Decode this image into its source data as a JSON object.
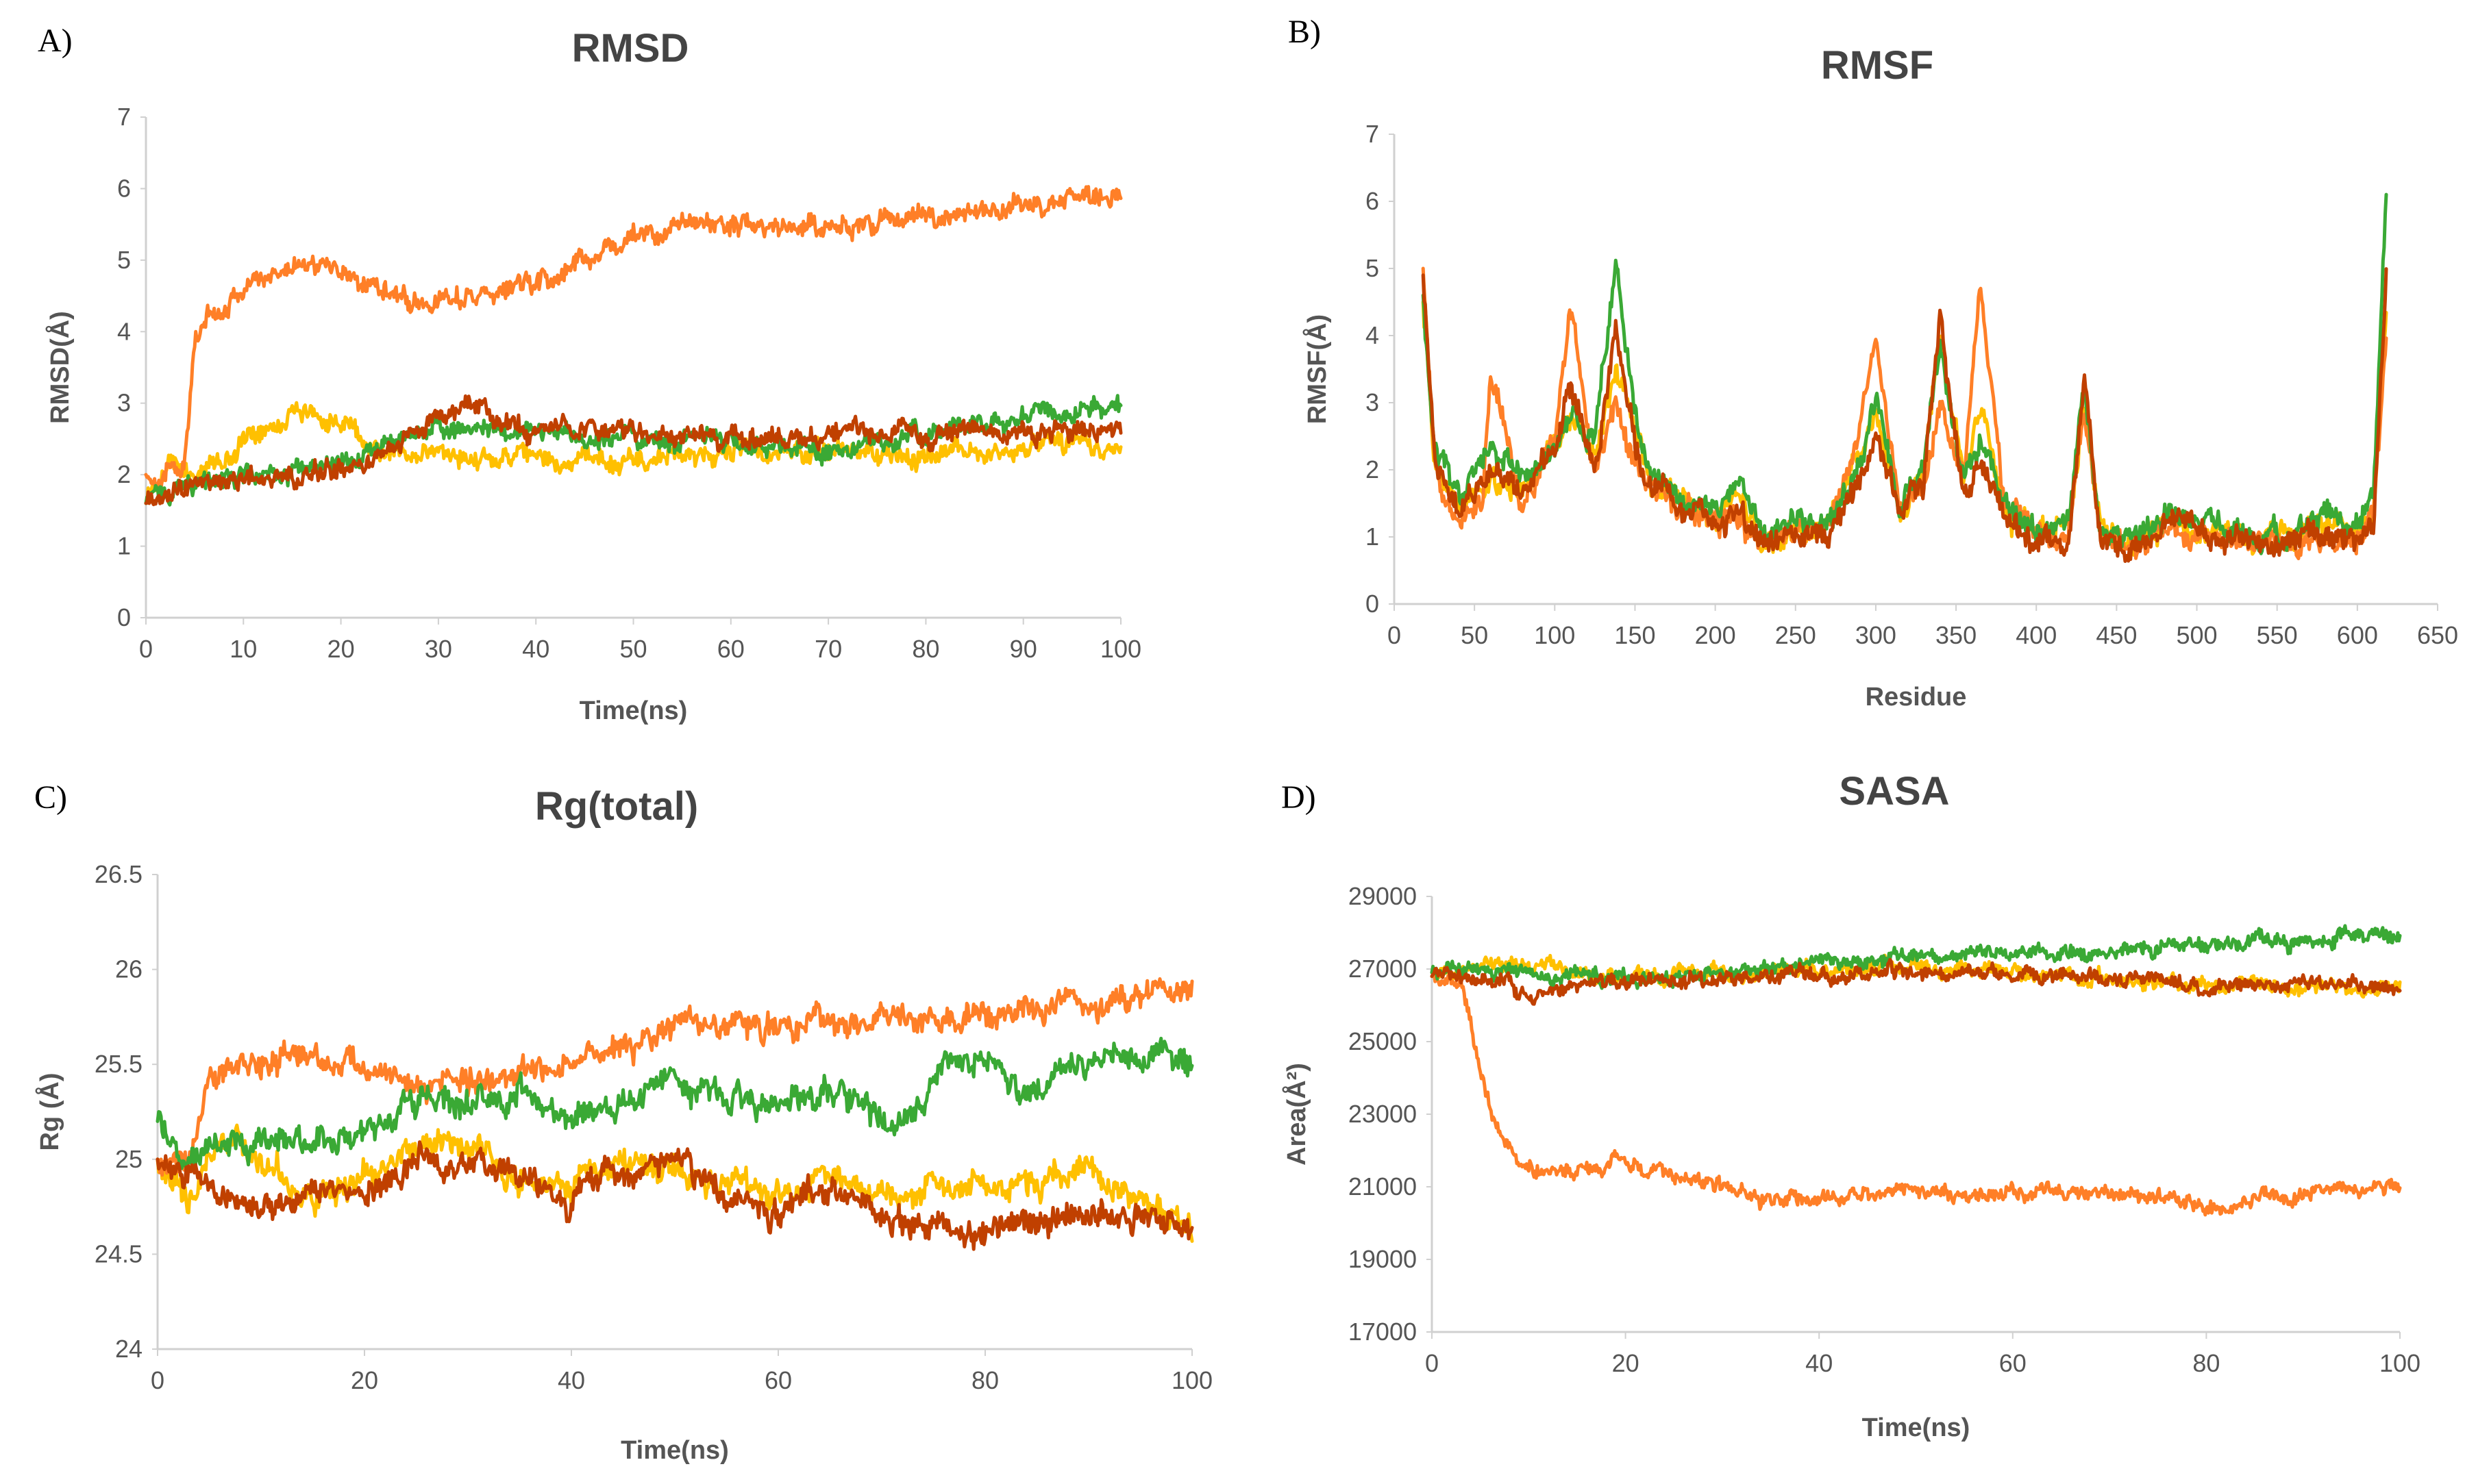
{
  "chart_data": [
    {
      "id": "A",
      "panel_label": "A)",
      "type": "line",
      "title": "RMSD",
      "xlabel": "Time(ns)",
      "ylabel": "RMSD(Å)",
      "xlim": [
        0,
        100
      ],
      "ylim": [
        0,
        7
      ],
      "xticks": [
        0,
        10,
        20,
        30,
        40,
        50,
        60,
        70,
        80,
        90,
        100
      ],
      "yticks": [
        0,
        1,
        2,
        3,
        4,
        5,
        6,
        7
      ],
      "grid": false,
      "noise": 0.35,
      "series": [
        {
          "name": "yellow",
          "color": "#ffc000",
          "x": [
            0,
            1,
            3,
            5,
            8,
            12,
            16,
            20,
            25,
            30,
            40,
            50,
            60,
            70,
            80,
            90,
            100
          ],
          "y": [
            1.6,
            1.9,
            2.2,
            2.0,
            2.2,
            2.7,
            2.9,
            2.7,
            2.3,
            2.3,
            2.2,
            2.2,
            2.3,
            2.3,
            2.3,
            2.4,
            2.4
          ]
        },
        {
          "name": "orange",
          "color": "#ff7f27",
          "x": [
            0,
            2,
            4,
            5,
            7,
            10,
            14,
            18,
            22,
            26,
            30,
            36,
            42,
            48,
            55,
            62,
            70,
            80,
            90,
            100
          ],
          "y": [
            2.0,
            2.0,
            2.2,
            3.8,
            4.3,
            4.6,
            4.9,
            5.0,
            4.7,
            4.5,
            4.45,
            4.5,
            4.8,
            5.2,
            5.5,
            5.5,
            5.45,
            5.6,
            5.75,
            5.9
          ]
        },
        {
          "name": "green",
          "color": "#3aa935",
          "x": [
            0,
            2,
            5,
            10,
            15,
            20,
            25,
            30,
            40,
            50,
            60,
            70,
            80,
            90,
            100
          ],
          "y": [
            1.6,
            1.8,
            1.9,
            1.95,
            2.0,
            2.1,
            2.5,
            2.7,
            2.6,
            2.5,
            2.5,
            2.3,
            2.6,
            2.8,
            3.0
          ]
        },
        {
          "name": "brown",
          "color": "#c04000",
          "x": [
            0,
            2,
            5,
            10,
            15,
            20,
            25,
            30,
            33,
            40,
            50,
            60,
            70,
            80,
            90,
            100
          ],
          "y": [
            1.6,
            1.7,
            1.85,
            2.0,
            2.0,
            2.05,
            2.3,
            2.8,
            3.0,
            2.6,
            2.6,
            2.5,
            2.55,
            2.6,
            2.6,
            2.65
          ]
        }
      ]
    },
    {
      "id": "B",
      "panel_label": "B)",
      "type": "line",
      "title": "RMSF",
      "xlabel": "Residue",
      "ylabel": "RMSF(Å)",
      "xlim": [
        0,
        650
      ],
      "ylim": [
        0,
        7
      ],
      "xticks": [
        0,
        50,
        100,
        150,
        200,
        250,
        300,
        350,
        400,
        450,
        500,
        550,
        600,
        650
      ],
      "yticks": [
        0,
        1,
        2,
        3,
        4,
        5,
        6,
        7
      ],
      "grid": false,
      "noise": 0.45,
      "series": [
        {
          "name": "yellow",
          "color": "#ffc000",
          "x": [
            18,
            25,
            40,
            60,
            80,
            100,
            110,
            125,
            138,
            150,
            160,
            180,
            200,
            215,
            230,
            250,
            270,
            290,
            300,
            315,
            330,
            340,
            355,
            365,
            380,
            400,
            420,
            430,
            440,
            460,
            480,
            500,
            520,
            540,
            560,
            580,
            600,
            610,
            618
          ],
          "y": [
            4.5,
            2.2,
            1.5,
            1.9,
            1.6,
            2.4,
            2.8,
            2.2,
            3.4,
            2.6,
            1.8,
            1.5,
            1.2,
            1.6,
            0.9,
            1.1,
            1.2,
            2.2,
            2.8,
            1.4,
            2.0,
            3.8,
            1.8,
            3.0,
            1.5,
            1.0,
            1.2,
            3.0,
            1.1,
            0.9,
            1.2,
            1.0,
            1.1,
            0.9,
            1.0,
            1.3,
            1.0,
            1.5,
            4.5
          ]
        },
        {
          "name": "orange",
          "color": "#ff7f27",
          "x": [
            18,
            25,
            40,
            55,
            60,
            80,
            100,
            110,
            125,
            138,
            150,
            160,
            180,
            200,
            215,
            230,
            250,
            270,
            290,
            300,
            315,
            330,
            340,
            355,
            365,
            380,
            400,
            420,
            430,
            440,
            460,
            480,
            500,
            520,
            540,
            560,
            580,
            600,
            610,
            618
          ],
          "y": [
            5.0,
            2.0,
            1.4,
            1.6,
            3.5,
            1.5,
            2.5,
            4.4,
            1.9,
            3.0,
            2.0,
            1.7,
            1.4,
            1.2,
            1.3,
            0.9,
            1.0,
            1.1,
            2.5,
            4.1,
            1.3,
            1.8,
            3.0,
            2.0,
            5.0,
            1.5,
            1.0,
            1.0,
            2.8,
            1.0,
            0.8,
            1.0,
            1.1,
            1.0,
            0.9,
            0.9,
            1.0,
            0.9,
            1.3,
            4.0
          ]
        },
        {
          "name": "green",
          "color": "#3aa935",
          "x": [
            18,
            25,
            40,
            60,
            80,
            100,
            110,
            125,
            138,
            150,
            160,
            180,
            200,
            215,
            230,
            250,
            270,
            290,
            300,
            315,
            330,
            340,
            355,
            365,
            380,
            400,
            420,
            430,
            440,
            460,
            480,
            500,
            520,
            540,
            560,
            580,
            600,
            610,
            618
          ],
          "y": [
            4.6,
            2.4,
            1.6,
            2.3,
            1.8,
            2.3,
            2.9,
            2.4,
            5.0,
            2.8,
            2.0,
            1.6,
            1.3,
            1.7,
            1.0,
            1.2,
            1.3,
            2.0,
            3.1,
            1.5,
            2.2,
            3.8,
            1.8,
            2.4,
            1.5,
            1.1,
            1.2,
            3.2,
            1.1,
            1.0,
            1.3,
            1.2,
            1.2,
            1.0,
            1.1,
            1.4,
            1.1,
            1.6,
            6.3
          ]
        },
        {
          "name": "brown",
          "color": "#c04000",
          "x": [
            18,
            25,
            40,
            60,
            80,
            100,
            110,
            125,
            138,
            150,
            160,
            180,
            200,
            215,
            230,
            250,
            270,
            290,
            300,
            315,
            330,
            340,
            355,
            365,
            380,
            400,
            420,
            430,
            440,
            460,
            480,
            500,
            520,
            540,
            560,
            580,
            600,
            610,
            618
          ],
          "y": [
            4.9,
            2.2,
            1.4,
            2.0,
            1.6,
            2.2,
            3.2,
            2.0,
            4.2,
            2.4,
            1.7,
            1.5,
            1.2,
            1.4,
            0.8,
            1.0,
            1.1,
            1.8,
            2.5,
            1.3,
            1.8,
            4.3,
            1.6,
            2.0,
            1.3,
            0.9,
            1.0,
            3.4,
            1.0,
            0.8,
            1.1,
            1.0,
            1.0,
            0.8,
            0.9,
            1.1,
            0.9,
            1.2,
            4.8
          ]
        }
      ]
    },
    {
      "id": "C",
      "panel_label": "C)",
      "type": "line",
      "title": "Rg(total)",
      "xlabel": "Time(ns)",
      "ylabel": "Rg (Å)",
      "xlim": [
        0,
        100
      ],
      "ylim": [
        24,
        26.5
      ],
      "xticks": [
        0,
        20,
        40,
        60,
        80,
        100
      ],
      "yticks": [
        24,
        24.5,
        25,
        25.5,
        26,
        26.5
      ],
      "grid": false,
      "noise": 0.18,
      "series": [
        {
          "name": "yellow",
          "color": "#ffc000",
          "x": [
            0,
            3,
            6,
            10,
            15,
            20,
            25,
            30,
            35,
            40,
            45,
            50,
            55,
            60,
            65,
            70,
            75,
            80,
            85,
            90,
            95,
            100
          ],
          "y": [
            25.0,
            24.75,
            25.1,
            25.0,
            24.8,
            24.9,
            25.05,
            25.1,
            24.9,
            24.85,
            25.0,
            24.95,
            24.85,
            24.8,
            24.95,
            24.8,
            24.9,
            24.85,
            24.85,
            24.9,
            24.8,
            24.65
          ]
        },
        {
          "name": "orange",
          "color": "#ff7f27",
          "x": [
            0,
            3,
            4,
            5,
            10,
            15,
            20,
            22,
            25,
            30,
            35,
            40,
            45,
            50,
            55,
            60,
            65,
            70,
            75,
            80,
            85,
            90,
            95,
            100
          ],
          "y": [
            25.0,
            24.9,
            25.2,
            25.5,
            25.5,
            25.5,
            25.5,
            25.45,
            25.35,
            25.4,
            25.45,
            25.5,
            25.6,
            25.7,
            25.72,
            25.7,
            25.72,
            25.72,
            25.75,
            25.75,
            25.8,
            25.8,
            25.85,
            25.9
          ]
        },
        {
          "name": "green",
          "color": "#3aa935",
          "x": [
            0,
            3,
            6,
            10,
            15,
            20,
            25,
            30,
            35,
            40,
            45,
            50,
            55,
            60,
            65,
            70,
            73,
            76,
            80,
            85,
            90,
            95,
            100
          ],
          "y": [
            25.2,
            25.0,
            25.1,
            25.1,
            25.1,
            25.15,
            25.35,
            25.3,
            25.4,
            25.2,
            25.3,
            25.4,
            25.35,
            25.3,
            25.4,
            25.2,
            25.2,
            25.5,
            25.5,
            25.4,
            25.5,
            25.5,
            25.5
          ]
        },
        {
          "name": "brown",
          "color": "#c04000",
          "x": [
            0,
            3,
            6,
            10,
            15,
            20,
            25,
            30,
            35,
            40,
            45,
            50,
            55,
            60,
            65,
            70,
            75,
            80,
            85,
            90,
            95,
            100
          ],
          "y": [
            25.0,
            24.9,
            24.8,
            24.75,
            24.85,
            24.8,
            25.0,
            25.0,
            24.85,
            24.8,
            24.95,
            24.95,
            24.8,
            24.75,
            24.85,
            24.7,
            24.65,
            24.6,
            24.65,
            24.7,
            24.7,
            24.6
          ]
        }
      ]
    },
    {
      "id": "D",
      "panel_label": "D)",
      "type": "line",
      "title": "SASA",
      "xlabel": "Time(ns)",
      "ylabel": "Area(Å²)",
      "xlim": [
        0,
        100
      ],
      "ylim": [
        17000,
        29000
      ],
      "xticks": [
        0,
        20,
        40,
        60,
        80,
        100
      ],
      "yticks": [
        17000,
        19000,
        21000,
        23000,
        25000,
        27000,
        29000
      ],
      "grid": false,
      "noise": 500,
      "series": [
        {
          "name": "yellow",
          "color": "#ffc000",
          "x": [
            0,
            5,
            10,
            20,
            30,
            40,
            50,
            60,
            70,
            80,
            90,
            100
          ],
          "y": [
            26800,
            27000,
            27100,
            26800,
            26900,
            27000,
            27100,
            26900,
            26700,
            26600,
            26500,
            26500
          ]
        },
        {
          "name": "orange",
          "color": "#ff7f27",
          "x": [
            0,
            3,
            4,
            5,
            6,
            8,
            10,
            15,
            20,
            25,
            30,
            35,
            40,
            50,
            60,
            70,
            75,
            80,
            85,
            90,
            95,
            100
          ],
          "y": [
            26800,
            26600,
            25500,
            24000,
            23000,
            22000,
            21500,
            21500,
            21700,
            21300,
            21100,
            20600,
            20700,
            20900,
            20800,
            20800,
            20700,
            20300,
            20600,
            20800,
            21000,
            20900
          ]
        },
        {
          "name": "green",
          "color": "#3aa935",
          "x": [
            0,
            5,
            10,
            20,
            30,
            40,
            50,
            60,
            70,
            80,
            90,
            100
          ],
          "y": [
            26900,
            26900,
            26900,
            26800,
            26900,
            27200,
            27300,
            27400,
            27500,
            27700,
            27800,
            27900
          ]
        },
        {
          "name": "brown",
          "color": "#c04000",
          "x": [
            0,
            5,
            10,
            20,
            30,
            40,
            50,
            60,
            70,
            80,
            90,
            100
          ],
          "y": [
            26800,
            26600,
            26400,
            26700,
            26700,
            26900,
            26900,
            26800,
            26800,
            26500,
            26600,
            26500
          ]
        }
      ]
    }
  ]
}
